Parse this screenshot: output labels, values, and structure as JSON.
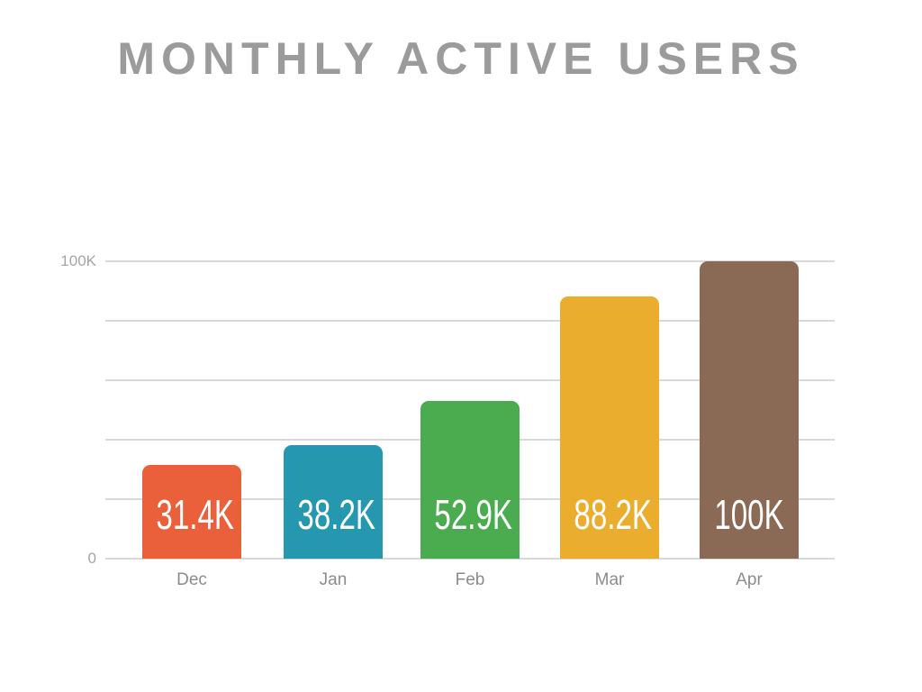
{
  "title": "MONTHLY ACTIVE USERS",
  "chart_data": {
    "type": "bar",
    "title": "MONTHLY ACTIVE USERS",
    "categories": [
      "Dec",
      "Jan",
      "Feb",
      "Mar",
      "Apr"
    ],
    "values": [
      31400,
      38200,
      52900,
      88200,
      100000
    ],
    "value_labels": [
      "31.4K",
      "38.2K",
      "52.9K",
      "88.2K",
      "100K"
    ],
    "bar_colors": [
      "#e9603a",
      "#2598af",
      "#4aac4e",
      "#eaad2d",
      "#8a6a55"
    ],
    "xlabel": "",
    "ylabel": "",
    "ylim": [
      0,
      100000
    ],
    "y_axis_labels": {
      "top": "100K",
      "bottom": "0"
    },
    "gridlines": {
      "visible": true,
      "values": [
        0,
        20000,
        40000,
        60000,
        80000,
        100000
      ]
    },
    "legend": "none"
  },
  "colors": {
    "background": "#ffffff",
    "title_text": "#9b9b9b",
    "axis_text": "#a5a5a5",
    "month_text": "#8c8c8c",
    "gridline": "#d9d9d9",
    "bar_label_text": "#ffffff"
  }
}
